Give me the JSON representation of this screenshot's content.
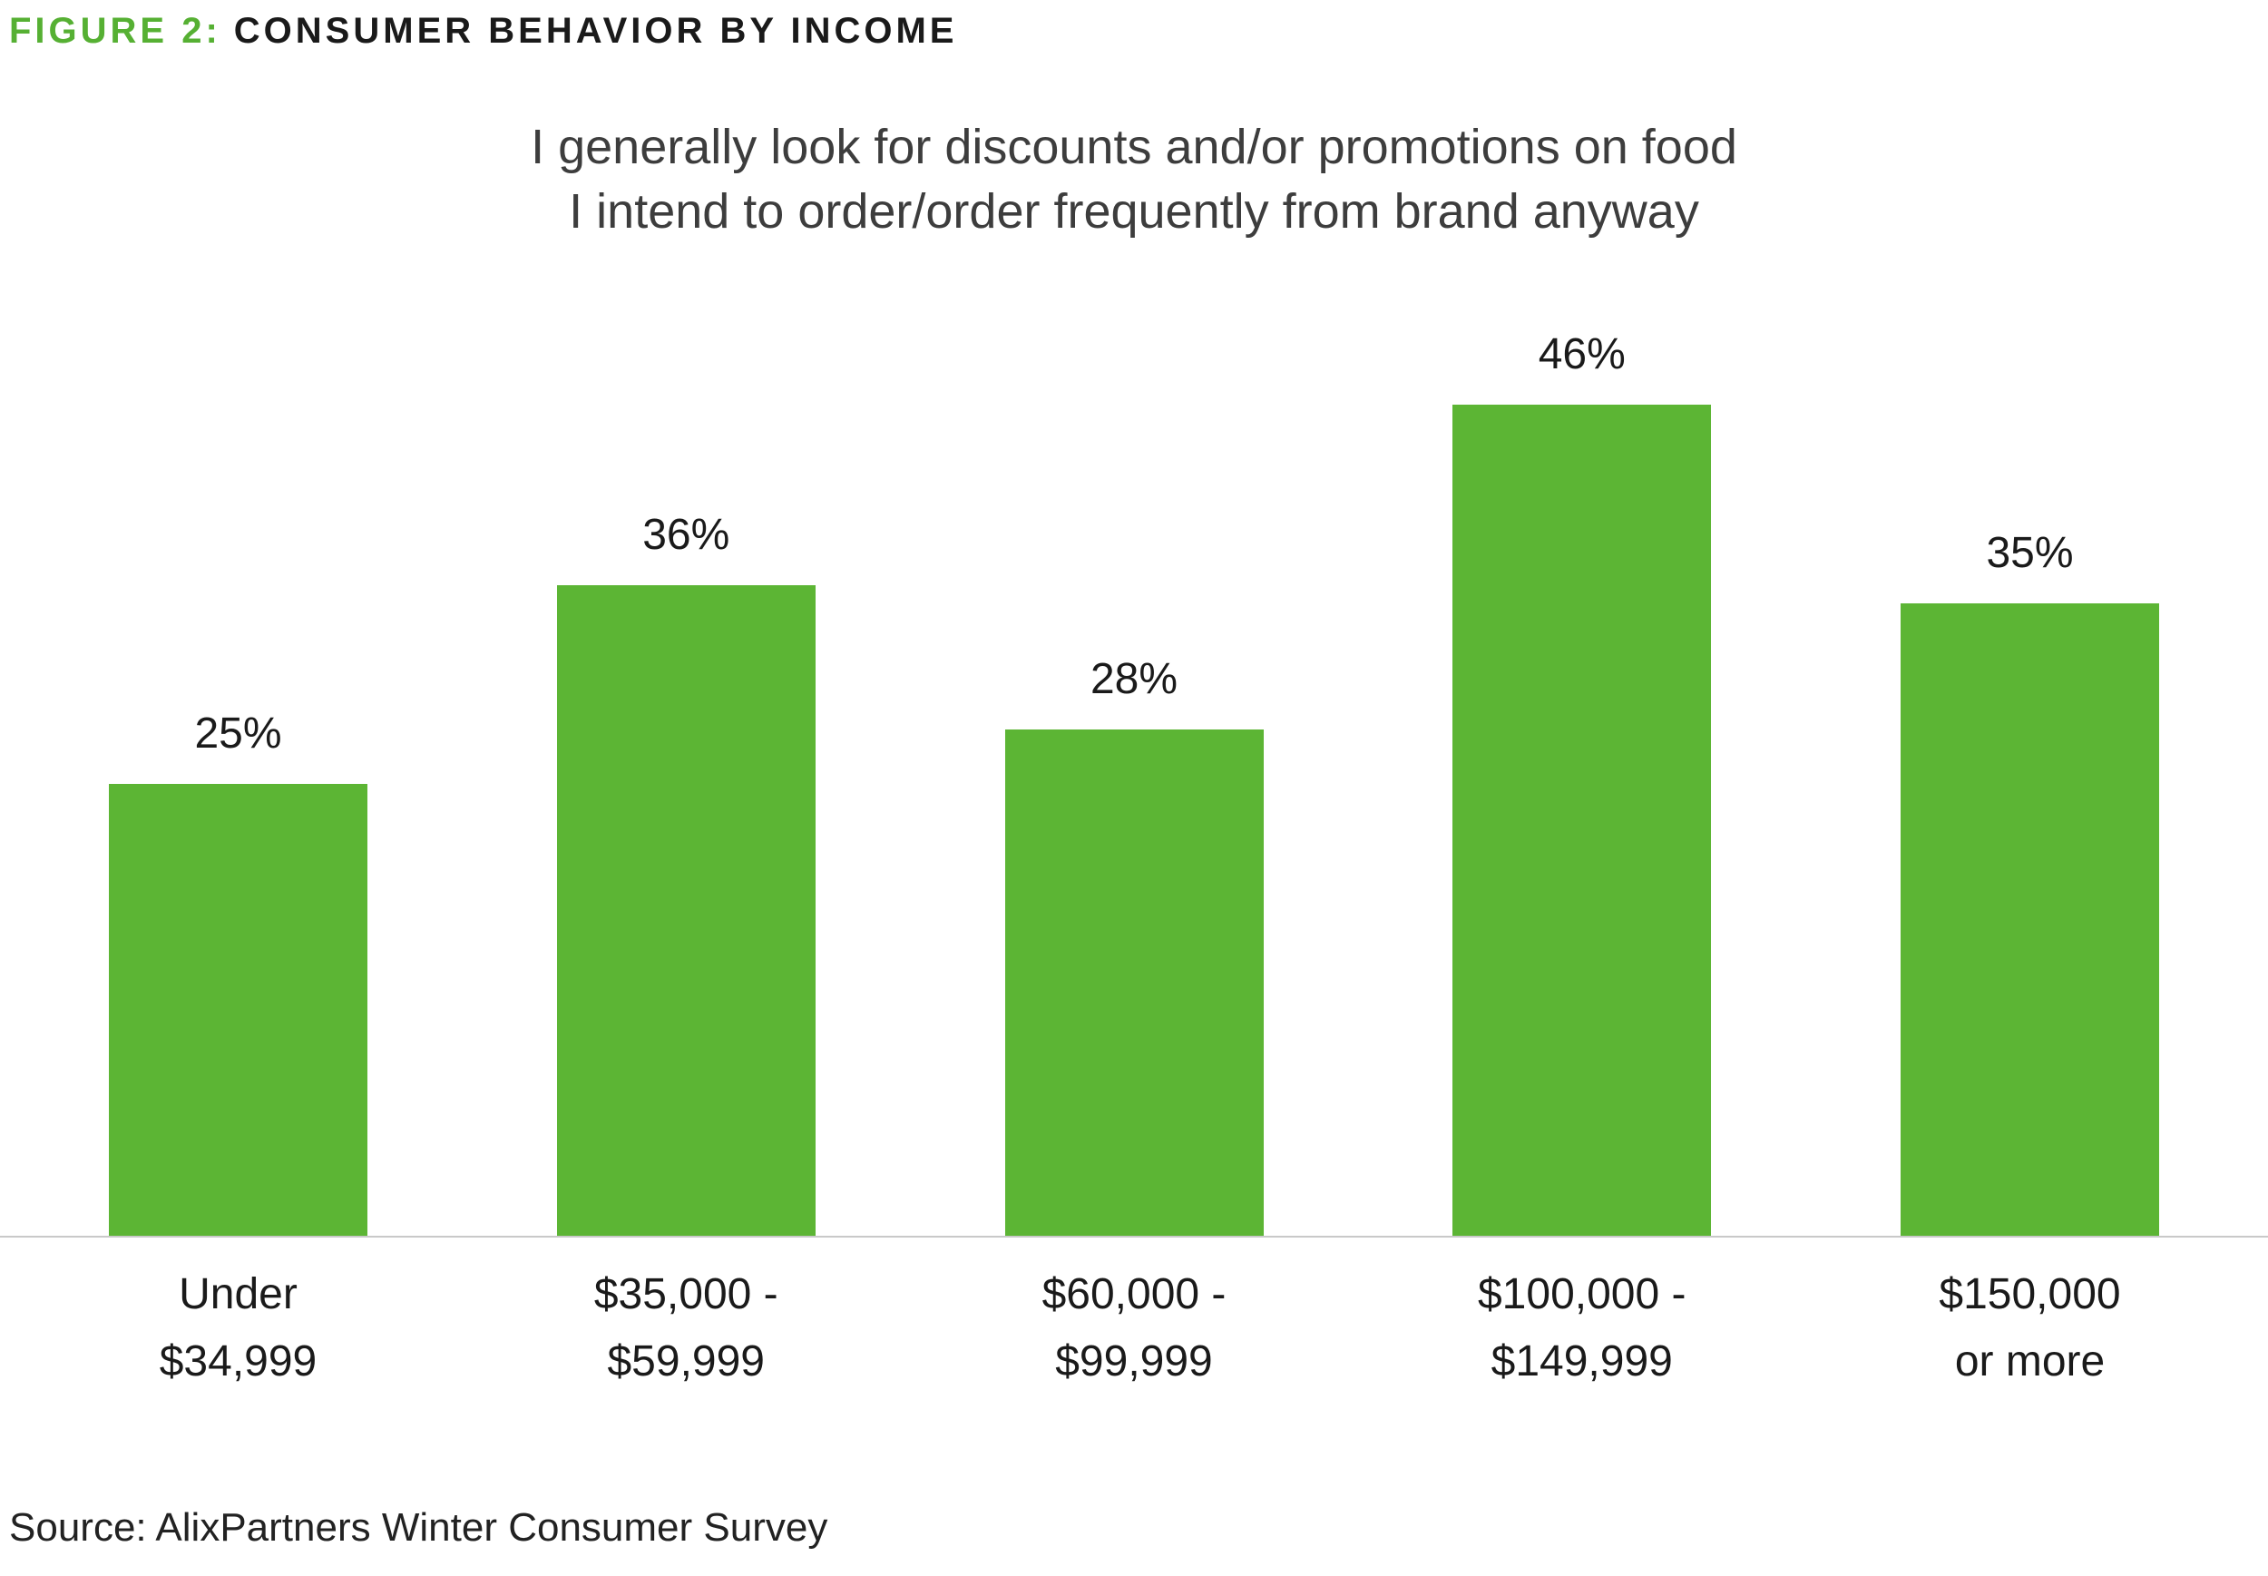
{
  "header": {
    "figure_label": "FIGURE 2:",
    "figure_title": "CONSUMER BEHAVIOR BY INCOME"
  },
  "title": {
    "line1": "I generally look for discounts and/or promotions on food",
    "line2": "I intend to order/order frequently from brand anyway"
  },
  "source": "Source: AlixPartners Winter Consumer Survey",
  "colors": {
    "bar_green": "#5cb534",
    "figure_label_green": "#56b033",
    "axis_gray": "#c9c9c9"
  },
  "chart_data": {
    "type": "bar",
    "title": "I generally look for discounts and/or promotions on food I intend to order/order frequently from brand anyway",
    "categories": [
      "Under $34,999",
      "$35,000 - $59,999",
      "$60,000 - $99,999",
      "$100,000 - $149,999",
      "$150,000 or more"
    ],
    "category_lines": [
      [
        "Under",
        "$34,999"
      ],
      [
        "$35,000 -",
        "$59,999"
      ],
      [
        "$60,000 -",
        "$99,999"
      ],
      [
        "$100,000 -",
        "$149,999"
      ],
      [
        "$150,000",
        "or more"
      ]
    ],
    "values": [
      25,
      36,
      28,
      46,
      35
    ],
    "value_labels": [
      "25%",
      "36%",
      "28%",
      "46%",
      "35%"
    ],
    "xlabel": "",
    "ylabel": "",
    "ylim": [
      0,
      50
    ],
    "grid": false,
    "legend": "none",
    "bar_color": "#5cb534"
  }
}
